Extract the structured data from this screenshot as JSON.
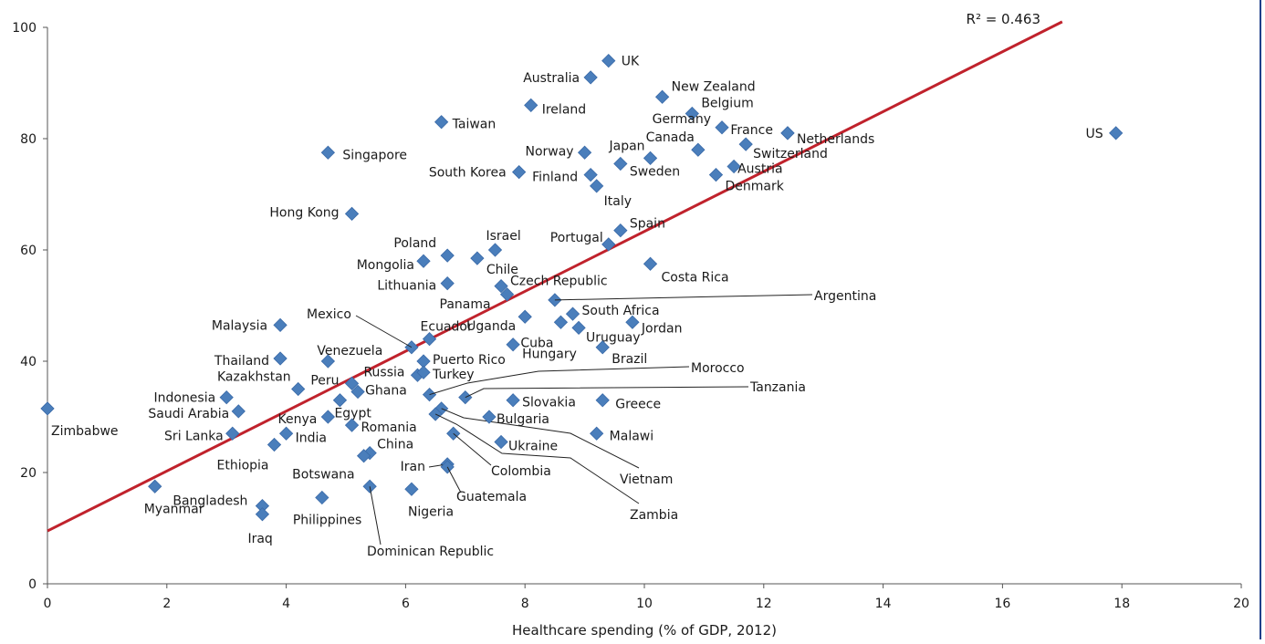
{
  "chart_data": {
    "type": "scatter",
    "title": "",
    "xlabel": "Healthcare spending (% of GDP, 2012)",
    "ylabel": "",
    "xlim": [
      0,
      20
    ],
    "ylim": [
      0,
      100
    ],
    "x_ticks": [
      0,
      2,
      4,
      6,
      8,
      10,
      12,
      14,
      16,
      18,
      20
    ],
    "y_ticks": [
      0,
      20,
      40,
      60,
      80,
      100
    ],
    "grid": false,
    "marker_color": "#4a7ebb",
    "trendline": {
      "label": "R² = 0.463",
      "color": "#c0222c",
      "x0": 0,
      "y0": 9.5,
      "x1": 17.0,
      "y1": 101
    },
    "points": [
      {
        "label": "UK",
        "x": 9.4,
        "y": 94
      },
      {
        "label": "Australia",
        "x": 9.1,
        "y": 91
      },
      {
        "label": "New Zealand",
        "x": 10.3,
        "y": 87.5
      },
      {
        "label": "Ireland",
        "x": 8.1,
        "y": 86
      },
      {
        "label": "Belgium",
        "x": 10.8,
        "y": 84.5
      },
      {
        "label": "Taiwan",
        "x": 6.6,
        "y": 83
      },
      {
        "label": "Germany",
        "x": 11.3,
        "y": 82
      },
      {
        "label": "France",
        "x": 12.4,
        "y": 81
      },
      {
        "label": "Netherlands",
        "x": 12.4,
        "y": 81
      },
      {
        "label": "US",
        "x": 17.9,
        "y": 81
      },
      {
        "label": "Canada",
        "x": 10.9,
        "y": 78
      },
      {
        "label": "Switzerland",
        "x": 11.7,
        "y": 79
      },
      {
        "label": "Norway",
        "x": 9.0,
        "y": 77.5
      },
      {
        "label": "Japan",
        "x": 10.1,
        "y": 76.5
      },
      {
        "label": "Singapore",
        "x": 4.7,
        "y": 77.5
      },
      {
        "label": "Austria",
        "x": 11.5,
        "y": 75
      },
      {
        "label": "Sweden",
        "x": 9.6,
        "y": 75.5
      },
      {
        "label": "South Korea",
        "x": 7.9,
        "y": 74
      },
      {
        "label": "Finland",
        "x": 9.1,
        "y": 73.5
      },
      {
        "label": "Denmark",
        "x": 11.2,
        "y": 73.5
      },
      {
        "label": "Italy",
        "x": 9.2,
        "y": 71.5
      },
      {
        "label": "Hong Kong",
        "x": 5.1,
        "y": 66.5
      },
      {
        "label": "Spain",
        "x": 9.6,
        "y": 63.5
      },
      {
        "label": "Portugal",
        "x": 9.4,
        "y": 61
      },
      {
        "label": "Israel",
        "x": 7.5,
        "y": 60
      },
      {
        "label": "Poland",
        "x": 6.7,
        "y": 59
      },
      {
        "label": "Chile",
        "x": 7.2,
        "y": 58.5
      },
      {
        "label": "Mongolia",
        "x": 6.3,
        "y": 58
      },
      {
        "label": "Costa Rica",
        "x": 10.1,
        "y": 57.5
      },
      {
        "label": "Lithuania",
        "x": 6.7,
        "y": 54
      },
      {
        "label": "Czech Republic",
        "x": 7.6,
        "y": 53.5
      },
      {
        "label": "Panama",
        "x": 7.7,
        "y": 52
      },
      {
        "label": "Argentina",
        "x": 8.5,
        "y": 51
      },
      {
        "label": "South Africa",
        "x": 8.8,
        "y": 48.5
      },
      {
        "label": "Uganda",
        "x": 8.0,
        "y": 48
      },
      {
        "label": "Cuba",
        "x": 8.6,
        "y": 47
      },
      {
        "label": "Jordan",
        "x": 9.8,
        "y": 47
      },
      {
        "label": "Malaysia",
        "x": 3.9,
        "y": 46.5
      },
      {
        "label": "Uruguay",
        "x": 8.9,
        "y": 46
      },
      {
        "label": "Ecuador",
        "x": 6.4,
        "y": 44
      },
      {
        "label": "Mexico",
        "x": 6.1,
        "y": 42.5
      },
      {
        "label": "Hungary",
        "x": 7.8,
        "y": 43
      },
      {
        "label": "Brazil",
        "x": 9.3,
        "y": 42.5
      },
      {
        "label": "Thailand",
        "x": 3.9,
        "y": 40.5
      },
      {
        "label": "Venezuela",
        "x": 4.7,
        "y": 40
      },
      {
        "label": "Puerto Rico",
        "x": 6.3,
        "y": 40
      },
      {
        "label": "Russia",
        "x": 6.2,
        "y": 37.5
      },
      {
        "label": "Turkey",
        "x": 6.3,
        "y": 38
      },
      {
        "label": "Peru",
        "x": 5.1,
        "y": 36
      },
      {
        "label": "Kazakhstan",
        "x": 4.2,
        "y": 35
      },
      {
        "label": "Ghana",
        "x": 5.2,
        "y": 34.5
      },
      {
        "label": "Morocco",
        "x": 6.4,
        "y": 34
      },
      {
        "label": "Tanzania",
        "x": 7.0,
        "y": 33.5
      },
      {
        "label": "Indonesia",
        "x": 3.0,
        "y": 33.5
      },
      {
        "label": "Slovakia",
        "x": 7.8,
        "y": 33
      },
      {
        "label": "Egypt",
        "x": 4.9,
        "y": 33
      },
      {
        "label": "Greece",
        "x": 9.3,
        "y": 33
      },
      {
        "label": "Vietnam",
        "x": 6.6,
        "y": 31.5
      },
      {
        "label": "Zimbabwe",
        "x": 0.0,
        "y": 31.5
      },
      {
        "label": "Saudi Arabia",
        "x": 3.2,
        "y": 31
      },
      {
        "label": "Zambia",
        "x": 6.5,
        "y": 30.5
      },
      {
        "label": "Kenya",
        "x": 4.7,
        "y": 30
      },
      {
        "label": "Bulgaria",
        "x": 7.4,
        "y": 30
      },
      {
        "label": "Romania",
        "x": 5.1,
        "y": 28.5
      },
      {
        "label": "Sri Lanka",
        "x": 3.1,
        "y": 27
      },
      {
        "label": "India",
        "x": 4.0,
        "y": 27
      },
      {
        "label": "Malawi",
        "x": 9.2,
        "y": 27
      },
      {
        "label": "Colombia",
        "x": 6.8,
        "y": 27
      },
      {
        "label": "Ukraine",
        "x": 7.6,
        "y": 25.5
      },
      {
        "label": "Ethiopia",
        "x": 3.8,
        "y": 25
      },
      {
        "label": "China",
        "x": 5.4,
        "y": 23.5
      },
      {
        "label": "Botswana",
        "x": 5.3,
        "y": 23
      },
      {
        "label": "Iran",
        "x": 6.7,
        "y": 21.5
      },
      {
        "label": "Guatemala",
        "x": 6.7,
        "y": 21
      },
      {
        "label": "Dominican Republic",
        "x": 5.4,
        "y": 17.5
      },
      {
        "label": "Myanmar",
        "x": 1.8,
        "y": 17.5
      },
      {
        "label": "Nigeria",
        "x": 6.1,
        "y": 17
      },
      {
        "label": "Philippines",
        "x": 4.6,
        "y": 15.5
      },
      {
        "label": "Bangladesh",
        "x": 3.6,
        "y": 14
      },
      {
        "label": "Iraq",
        "x": 3.6,
        "y": 12.5
      }
    ]
  }
}
